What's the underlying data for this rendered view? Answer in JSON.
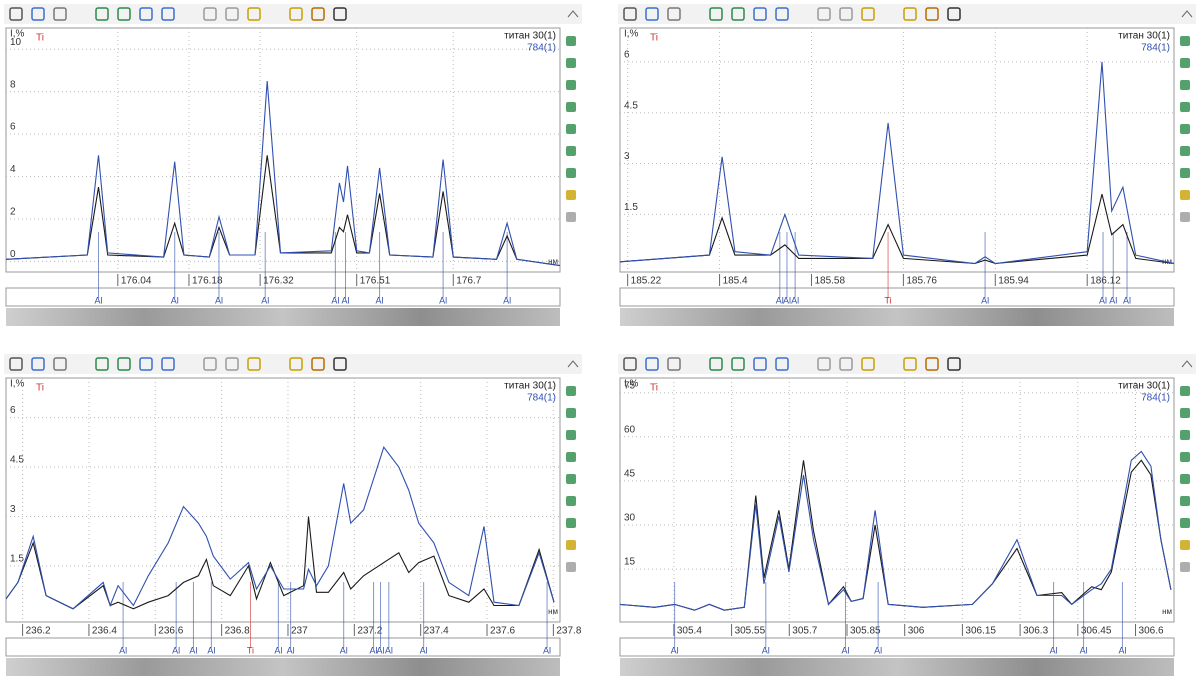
{
  "chart_data": [
    {
      "type": "line",
      "y_label": "I,%",
      "element": "Ti",
      "x_unit": "нм",
      "grid": true,
      "xlim": [
        175.82,
        176.91
      ],
      "ylim": [
        -0.5,
        11
      ],
      "xticks": [
        176.04,
        176.18,
        176.32,
        176.51,
        176.7
      ],
      "yticks": [
        0,
        2,
        4,
        6,
        8,
        10
      ],
      "x": [
        175.82,
        175.98,
        176.002,
        176.02,
        176.13,
        176.152,
        176.17,
        176.22,
        176.239,
        176.26,
        176.31,
        176.334,
        176.36,
        176.46,
        176.476,
        176.484,
        176.492,
        176.51,
        176.535,
        176.555,
        176.575,
        176.66,
        176.68,
        176.7,
        176.785,
        176.806,
        176.825,
        176.91
      ],
      "series": [
        {
          "name": "титан 30(1)",
          "color": "#1a1a1a",
          "values": [
            0.1,
            0.3,
            3.5,
            0.3,
            0.2,
            1.8,
            0.3,
            0.2,
            1.6,
            0.3,
            0.3,
            5,
            0.4,
            0.4,
            1.6,
            1.4,
            2.2,
            0.4,
            0.4,
            3.2,
            0.3,
            0.2,
            3.3,
            0.2,
            0.1,
            1.2,
            0.1,
            -0.2
          ]
        },
        {
          "name": "784(1)",
          "color": "#3050b0",
          "values": [
            0.1,
            0.3,
            5,
            0.4,
            0.2,
            4.7,
            0.3,
            0.2,
            2.1,
            0.3,
            0.3,
            8.5,
            0.4,
            0.5,
            3.7,
            2.8,
            4.5,
            0.5,
            0.4,
            4.4,
            0.3,
            0.2,
            4.8,
            0.2,
            0.1,
            1.8,
            0.1,
            -0.2
          ]
        }
      ],
      "element_lines": [
        {
          "x": 176.002,
          "label": "Al",
          "color": "#3050b0"
        },
        {
          "x": 176.152,
          "label": "Al",
          "color": "#3050b0"
        },
        {
          "x": 176.239,
          "label": "Al",
          "color": "#3050b0"
        },
        {
          "x": 176.33,
          "label": "Al",
          "color": "#3050b0"
        },
        {
          "x": 176.468,
          "label": "Al",
          "color": "#3050b0"
        },
        {
          "x": 176.488,
          "label": "Al",
          "color": "#3050b0"
        },
        {
          "x": 176.555,
          "label": "Al",
          "color": "#3050b0"
        },
        {
          "x": 176.68,
          "label": "Al",
          "color": "#3050b0"
        },
        {
          "x": 176.806,
          "label": "Al",
          "color": "#3050b0"
        }
      ]
    },
    {
      "type": "line",
      "y_label": "I,%",
      "element": "Ti",
      "x_unit": "нм",
      "grid": true,
      "xlim": [
        185.205,
        186.29
      ],
      "ylim": [
        -0.2,
        7
      ],
      "xticks": [
        185.22,
        185.4,
        185.58,
        185.76,
        185.94,
        186.12
      ],
      "yticks": [
        1.5,
        3,
        4.5,
        6
      ],
      "x": [
        185.205,
        185.38,
        185.405,
        185.43,
        185.5,
        185.528,
        185.555,
        185.7,
        185.73,
        185.76,
        185.9,
        185.92,
        185.94,
        186.12,
        186.149,
        186.168,
        186.19,
        186.215,
        186.29
      ],
      "series": [
        {
          "name": "титан 30(1)",
          "color": "#1a1a1a",
          "values": [
            0.1,
            0.3,
            1.4,
            0.3,
            0.3,
            0.6,
            0.2,
            0.2,
            1.2,
            0.2,
            0.05,
            0.15,
            0.05,
            0.3,
            2.1,
            0.9,
            1.2,
            0.2,
            0.05
          ]
        },
        {
          "name": "784(1)",
          "color": "#3050b0",
          "values": [
            0.1,
            0.3,
            3.2,
            0.4,
            0.3,
            1.5,
            0.3,
            0.2,
            4.2,
            0.3,
            0.05,
            0.25,
            0.05,
            0.4,
            6,
            1.6,
            2.3,
            0.3,
            0.05
          ]
        }
      ],
      "element_lines": [
        {
          "x": 185.518,
          "label": "Al",
          "color": "#3050b0"
        },
        {
          "x": 185.532,
          "label": "Al",
          "color": "#3050b0"
        },
        {
          "x": 185.548,
          "label": "Al",
          "color": "#3050b0"
        },
        {
          "x": 185.73,
          "label": "Ti",
          "color": "#d03030"
        },
        {
          "x": 185.92,
          "label": "Al",
          "color": "#3050b0"
        },
        {
          "x": 186.151,
          "label": "Al",
          "color": "#3050b0"
        },
        {
          "x": 186.171,
          "label": "Al",
          "color": "#3050b0"
        },
        {
          "x": 186.198,
          "label": "Al",
          "color": "#3050b0"
        }
      ]
    },
    {
      "type": "line",
      "y_label": "I,%",
      "element": "Ti",
      "x_unit": "нм",
      "grid": true,
      "xlim": [
        236.15,
        237.82
      ],
      "ylim": [
        -0.2,
        7.2
      ],
      "xticks": [
        236.2,
        236.4,
        236.6,
        236.8,
        237,
        237.2,
        237.4,
        237.6,
        237.8
      ],
      "yticks": [
        1.5,
        3,
        4.5,
        6
      ],
      "x": [
        236.15,
        236.186,
        236.232,
        236.271,
        236.352,
        236.443,
        236.464,
        236.488,
        236.534,
        236.579,
        236.639,
        236.685,
        236.73,
        236.754,
        236.775,
        236.826,
        236.881,
        236.905,
        236.947,
        236.987,
        237.047,
        237.062,
        237.086,
        237.122,
        237.168,
        237.189,
        237.228,
        237.289,
        237.334,
        237.364,
        237.394,
        237.44,
        237.485,
        237.545,
        237.591,
        237.621,
        237.696,
        237.757,
        237.802
      ],
      "series": [
        {
          "name": "титан 30(1)",
          "color": "#1a1a1a",
          "values": [
            0.5,
            1.0,
            2.2,
            0.6,
            0.2,
            0.9,
            0.3,
            0.4,
            0.2,
            0.4,
            0.6,
            1.0,
            1.2,
            1.7,
            0.9,
            0.6,
            1.5,
            0.5,
            1.6,
            0.6,
            0.9,
            3.0,
            0.7,
            0.7,
            1.3,
            0.8,
            1.2,
            1.6,
            1.9,
            1.3,
            1.6,
            1.8,
            0.6,
            0.4,
            0.8,
            0.3,
            0.3,
            2.0,
            0.4
          ]
        },
        {
          "name": "784(1)",
          "color": "#3050b0",
          "values": [
            0.5,
            1.0,
            2.4,
            0.6,
            0.2,
            1.0,
            0.3,
            0.9,
            0.3,
            1.2,
            2.2,
            3.3,
            2.8,
            2.4,
            1.8,
            1.1,
            1.6,
            0.8,
            1.5,
            0.8,
            0.8,
            1.4,
            0.9,
            1.5,
            4.0,
            2.8,
            3.2,
            5.1,
            4.5,
            3.8,
            2.8,
            2.2,
            1.0,
            0.6,
            2.7,
            0.4,
            0.3,
            1.9,
            0.4
          ]
        }
      ],
      "element_lines": [
        {
          "x": 236.503,
          "label": "Al",
          "color": "#3050b0"
        },
        {
          "x": 236.663,
          "label": "Al",
          "color": "#3050b0"
        },
        {
          "x": 236.715,
          "label": "Al",
          "color": "#3050b0"
        },
        {
          "x": 236.769,
          "label": "Al",
          "color": "#3050b0"
        },
        {
          "x": 236.887,
          "label": "Ti",
          "color": "#d03030"
        },
        {
          "x": 236.971,
          "label": "Al",
          "color": "#3050b0"
        },
        {
          "x": 237.008,
          "label": "Al",
          "color": "#3050b0"
        },
        {
          "x": 237.168,
          "label": "Al",
          "color": "#3050b0"
        },
        {
          "x": 237.258,
          "label": "Al",
          "color": "#3050b0"
        },
        {
          "x": 237.279,
          "label": "Al",
          "color": "#3050b0"
        },
        {
          "x": 237.304,
          "label": "Al",
          "color": "#3050b0"
        },
        {
          "x": 237.409,
          "label": "Al",
          "color": "#3050b0"
        },
        {
          "x": 237.781,
          "label": "Al",
          "color": "#3050b0"
        }
      ]
    },
    {
      "type": "line",
      "y_label": "I,%",
      "element": "Ti",
      "x_unit": "нм",
      "grid": true,
      "xlim": [
        305.26,
        306.7
      ],
      "ylim": [
        -3,
        80
      ],
      "xticks": [
        305.4,
        305.55,
        305.7,
        305.85,
        306,
        306.15,
        306.3,
        306.45,
        306.6
      ],
      "yticks": [
        15,
        30,
        45,
        60,
        75
      ],
      "x": [
        305.26,
        305.35,
        305.402,
        305.454,
        305.492,
        305.531,
        305.583,
        305.613,
        305.634,
        305.673,
        305.699,
        305.737,
        305.763,
        305.802,
        305.841,
        305.861,
        305.892,
        305.923,
        305.957,
        306.047,
        306.176,
        306.228,
        306.292,
        306.344,
        306.408,
        306.434,
        306.486,
        306.511,
        306.537,
        306.589,
        306.615,
        306.64,
        306.666,
        306.692
      ],
      "series": [
        {
          "name": "титан 30(1)",
          "color": "#1a1a1a",
          "values": [
            3,
            2,
            3,
            1,
            3,
            1,
            2,
            40,
            12,
            35,
            15,
            52,
            28,
            3,
            9,
            4,
            5,
            30,
            3,
            2,
            3,
            10,
            22,
            6,
            7,
            3,
            9,
            8,
            14,
            48,
            52,
            47,
            25,
            8
          ]
        },
        {
          "name": "784(1)",
          "color": "#3050b0",
          "values": [
            3,
            2,
            3,
            1,
            3,
            1,
            2,
            37,
            10,
            33,
            14,
            47,
            25,
            3,
            8,
            4,
            5,
            35,
            3,
            2,
            3,
            10,
            25,
            6,
            6,
            3,
            8,
            10,
            15,
            52,
            55,
            50,
            25,
            8
          ]
        }
      ],
      "element_lines": [
        {
          "x": 305.402,
          "label": "Al",
          "color": "#3050b0"
        },
        {
          "x": 305.639,
          "label": "Al",
          "color": "#3050b0"
        },
        {
          "x": 305.846,
          "label": "Al",
          "color": "#3050b0"
        },
        {
          "x": 305.931,
          "label": "Al",
          "color": "#3050b0"
        },
        {
          "x": 306.387,
          "label": "Al",
          "color": "#3050b0"
        },
        {
          "x": 306.465,
          "label": "Al",
          "color": "#3050b0"
        },
        {
          "x": 306.566,
          "label": "Al",
          "color": "#3050b0"
        }
      ]
    }
  ]
}
